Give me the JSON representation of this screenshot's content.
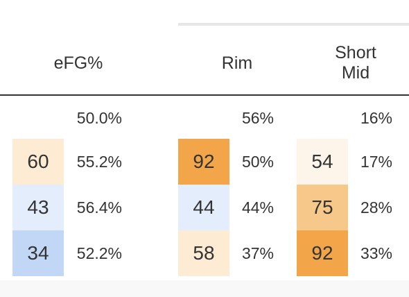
{
  "headers": {
    "efg": "eFG%",
    "rim": "Rim",
    "short_mid": "Short\nMid"
  },
  "league_row": {
    "efg": "50.0%",
    "rim": "56%",
    "short_mid": "16%"
  },
  "rows": [
    {
      "efg_rank": "60",
      "efg_value": "55.2%",
      "efg_color": "#fdebd3",
      "rim_rank": "92",
      "rim_value": "50%",
      "rim_color": "#f2a649",
      "short_mid_rank": "54",
      "short_mid_value": "17%",
      "short_mid_color": "#fef5ea"
    },
    {
      "efg_rank": "43",
      "efg_value": "56.4%",
      "efg_color": "#e3edfb",
      "rim_rank": "44",
      "rim_value": "44%",
      "rim_color": "#e3edfb",
      "short_mid_rank": "75",
      "short_mid_value": "28%",
      "short_mid_color": "#f6c889"
    },
    {
      "efg_rank": "34",
      "efg_value": "52.2%",
      "efg_color": "#c2d6f6",
      "rim_rank": "58",
      "rim_value": "37%",
      "rim_color": "#fdebd3",
      "short_mid_rank": "92",
      "short_mid_value": "33%",
      "short_mid_color": "#f2a649"
    }
  ]
}
